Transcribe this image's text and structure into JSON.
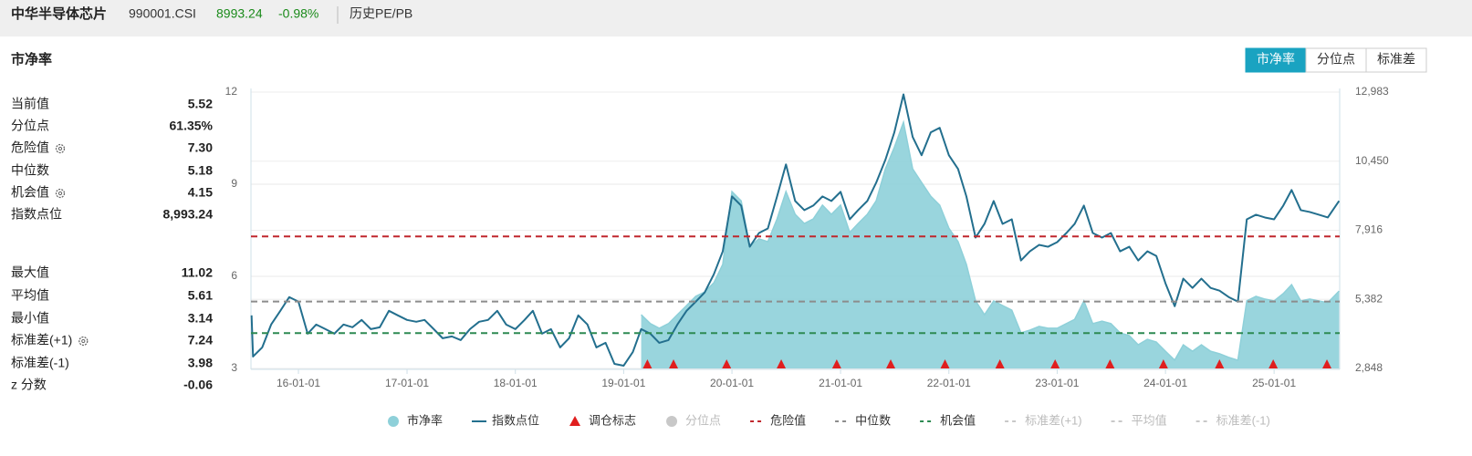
{
  "header": {
    "name": "中华半导体芯片",
    "code": "990001.CSI",
    "price": "8993.24",
    "change": "-0.98%",
    "link": "历史PE/PB"
  },
  "section_title": "市净率",
  "tabs": [
    {
      "label": "市净率",
      "active": true
    },
    {
      "label": "分位点",
      "active": false
    },
    {
      "label": "标准差",
      "active": false
    }
  ],
  "stats": [
    [
      {
        "label": "当前值",
        "value": "5.52",
        "gear": false
      },
      {
        "label": "分位点",
        "value": "61.35%",
        "gear": false
      },
      {
        "label": "危险值",
        "value": "7.30",
        "gear": true
      },
      {
        "label": "中位数",
        "value": "5.18",
        "gear": false
      },
      {
        "label": "机会值",
        "value": "4.15",
        "gear": true
      },
      {
        "label": "指数点位",
        "value": "8,993.24",
        "gear": false
      }
    ],
    [
      {
        "label": "最大值",
        "value": "11.02",
        "gear": false
      },
      {
        "label": "平均值",
        "value": "5.61",
        "gear": false
      },
      {
        "label": "最小值",
        "value": "3.14",
        "gear": false
      },
      {
        "label": "标准差(+1)",
        "value": "7.24",
        "gear": true
      },
      {
        "label": "标准差(-1)",
        "value": "3.98",
        "gear": false
      },
      {
        "label": "z 分数",
        "value": "-0.06",
        "gear": false
      }
    ]
  ],
  "chart_data": {
    "type": "area",
    "x": [
      "15-07-27",
      "15-08-01",
      "15-09-01",
      "15-10-01",
      "15-11-01",
      "15-12-01",
      "16-01-01",
      "16-02-01",
      "16-03-01",
      "16-04-01",
      "16-05-01",
      "16-06-01",
      "16-07-01",
      "16-08-01",
      "16-09-01",
      "16-10-01",
      "16-11-01",
      "16-12-01",
      "17-01-01",
      "17-02-01",
      "17-03-01",
      "17-04-01",
      "17-05-01",
      "17-06-01",
      "17-07-01",
      "17-08-01",
      "17-09-01",
      "17-10-01",
      "17-11-01",
      "17-12-01",
      "18-01-01",
      "18-02-01",
      "18-03-01",
      "18-04-01",
      "18-05-01",
      "18-06-01",
      "18-07-01",
      "18-08-01",
      "18-09-01",
      "18-10-01",
      "18-11-01",
      "18-12-01",
      "19-01-01",
      "19-02-01",
      "19-03-01",
      "19-04-01",
      "19-05-01",
      "19-06-01",
      "19-07-01",
      "19-08-01",
      "19-09-01",
      "19-10-01",
      "19-11-01",
      "19-12-01",
      "20-01-01",
      "20-02-01",
      "20-03-01",
      "20-04-01",
      "20-05-01",
      "20-06-01",
      "20-07-01",
      "20-08-01",
      "20-09-01",
      "20-10-01",
      "20-11-01",
      "20-12-01",
      "21-01-01",
      "21-02-01",
      "21-03-01",
      "21-04-01",
      "21-05-01",
      "21-06-01",
      "21-07-01",
      "21-08-01",
      "21-09-01",
      "21-10-01",
      "21-11-01",
      "21-12-01",
      "22-01-01",
      "22-02-01",
      "22-03-01",
      "22-04-01",
      "22-05-01",
      "22-06-01",
      "22-07-01",
      "22-08-01",
      "22-09-01",
      "22-10-01",
      "22-11-01",
      "22-12-01",
      "23-01-01",
      "23-02-01",
      "23-03-01",
      "23-04-01",
      "23-05-01",
      "23-06-01",
      "23-07-01",
      "23-08-01",
      "23-09-01",
      "23-10-01",
      "23-11-01",
      "23-12-01",
      "24-01-01",
      "24-02-01",
      "24-03-01",
      "24-04-01",
      "24-05-01",
      "24-06-01",
      "24-07-01",
      "24-08-01",
      "24-09-01",
      "24-10-01",
      "24-11-01",
      "24-12-01",
      "25-01-01",
      "25-02-01",
      "25-03-01",
      "25-04-01",
      "25-05-01",
      "25-06-01",
      "25-07-01",
      "25-08-08"
    ],
    "series": [
      {
        "name": "市净率",
        "type": "area",
        "axis": "y",
        "color": "#8ed0d9",
        "values": [
          null,
          null,
          null,
          null,
          null,
          null,
          null,
          null,
          null,
          null,
          null,
          null,
          null,
          null,
          null,
          null,
          null,
          null,
          null,
          null,
          null,
          null,
          null,
          null,
          null,
          null,
          null,
          null,
          null,
          null,
          null,
          null,
          null,
          null,
          null,
          null,
          null,
          null,
          null,
          null,
          null,
          null,
          null,
          null,
          4.75,
          4.46,
          4.31,
          4.46,
          4.75,
          5.05,
          5.35,
          5.49,
          5.79,
          6.39,
          8.76,
          8.46,
          6.98,
          7.22,
          7.13,
          7.87,
          8.76,
          8.02,
          7.72,
          7.87,
          8.32,
          8.02,
          8.32,
          7.43,
          7.72,
          8.02,
          8.46,
          9.5,
          10.2,
          11.02,
          9.5,
          9.06,
          8.61,
          8.32,
          7.57,
          7.13,
          6.39,
          5.2,
          4.75,
          5.2,
          5.05,
          4.9,
          4.16,
          4.25,
          4.37,
          4.31,
          4.31,
          4.46,
          4.6,
          5.2,
          4.46,
          4.54,
          4.46,
          4.16,
          4.07,
          3.77,
          3.95,
          3.86,
          3.56,
          3.27,
          3.77,
          3.56,
          3.77,
          3.56,
          3.48,
          3.36,
          3.27,
          5.2,
          5.35,
          5.26,
          5.2,
          5.44,
          5.73,
          5.2,
          5.26,
          5.2,
          5.14,
          5.52
        ]
      },
      {
        "name": "指数点位",
        "type": "line",
        "axis": "y2",
        "color": "#236f8e",
        "values": [
          4795,
          3284,
          3620,
          4459,
          4962,
          5466,
          5298,
          4123,
          4459,
          4291,
          4123,
          4459,
          4358,
          4627,
          4291,
          4358,
          4962,
          4794,
          4627,
          4560,
          4627,
          4291,
          3956,
          4023,
          3888,
          4291,
          4560,
          4627,
          4962,
          4459,
          4291,
          4627,
          4962,
          4123,
          4291,
          3620,
          3956,
          4794,
          4459,
          3620,
          3788,
          3016,
          2949,
          3452,
          4291,
          4123,
          3788,
          3888,
          4459,
          4962,
          5298,
          5634,
          6304,
          7144,
          9157,
          8822,
          7312,
          7815,
          7983,
          9157,
          10331,
          8990,
          8654,
          8822,
          9157,
          8990,
          9325,
          8318,
          8654,
          8990,
          9660,
          10499,
          11500,
          12900,
          11339,
          10667,
          11507,
          11674,
          10667,
          10164,
          9157,
          7648,
          8151,
          8990,
          8151,
          8318,
          6808,
          7144,
          7379,
          7312,
          7480,
          7815,
          8151,
          8822,
          7815,
          7648,
          7815,
          7144,
          7312,
          6808,
          7144,
          6976,
          5969,
          5130,
          6141,
          5802,
          6141,
          5802,
          5701,
          5466,
          5298,
          8318,
          8486,
          8385,
          8318,
          8822,
          9392,
          8654,
          8587,
          8486,
          8385,
          8993
        ]
      }
    ],
    "markers": {
      "name": "调仓标志",
      "color": "#e01e1e",
      "x": [
        "19-03-22",
        "19-06-18",
        "19-12-14",
        "20-06-15",
        "20-12-19",
        "21-06-19",
        "21-12-19",
        "22-06-22",
        "22-12-25",
        "23-06-28",
        "23-12-25",
        "24-07-01",
        "24-12-29",
        "25-06-28"
      ]
    },
    "reference_lines": [
      {
        "name": "危险值",
        "value": 7.3,
        "color": "#c0272d"
      },
      {
        "name": "中位数",
        "value": 5.18,
        "color": "#8c8c8c"
      },
      {
        "name": "机会值",
        "value": 4.15,
        "color": "#2d8a52"
      }
    ],
    "inactive_legend": [
      {
        "name": "分位点",
        "symbol": "circle"
      },
      {
        "name": "标准差(+1)",
        "symbol": "dash"
      },
      {
        "name": "平均值",
        "symbol": "dash"
      },
      {
        "name": "标准差(-1)",
        "symbol": "dash"
      }
    ],
    "inactive_color": "#c8c8c8",
    "xlim": [
      "15-07-25",
      "25-08-10"
    ],
    "xticks": [
      "16-01-01",
      "17-01-01",
      "18-01-01",
      "19-01-01",
      "20-01-01",
      "21-01-01",
      "22-01-01",
      "23-01-01",
      "24-01-01",
      "25-01-01"
    ],
    "ylim": [
      3,
      12
    ],
    "yticks": [
      3,
      6,
      9,
      12
    ],
    "y2lim": [
      2848,
      12983
    ],
    "y2ticks": [
      {
        "value": 2848,
        "label": "2,848"
      },
      {
        "value": 5382,
        "label": "5,382"
      },
      {
        "value": 7916,
        "label": "7,916"
      },
      {
        "value": 10450,
        "label": "10,450"
      },
      {
        "value": 12983,
        "label": "12,983"
      }
    ],
    "grid": true
  }
}
